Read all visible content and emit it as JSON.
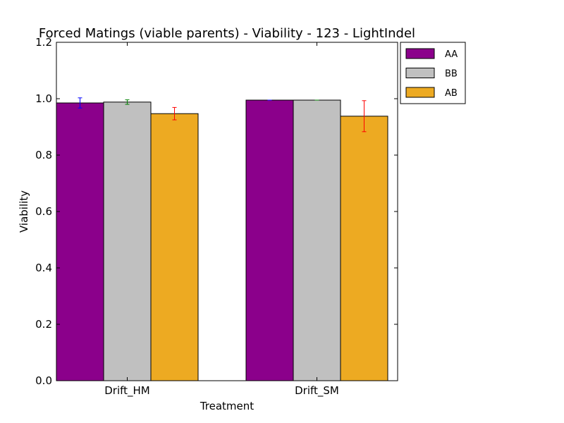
{
  "chart_data": {
    "type": "bar",
    "title": "Forced Matings (viable parents) - Viability - 123 - LightIndel",
    "xlabel": "Treatment",
    "ylabel": "Viability",
    "ylim": [
      0,
      1.2
    ],
    "yticks": [
      "0.0",
      "0.2",
      "0.4",
      "0.6",
      "0.8",
      "1.0",
      "1.2"
    ],
    "categories": [
      "Drift_HM",
      "Drift_SM"
    ],
    "series": [
      {
        "name": "AA",
        "color": "#8b008b",
        "error_color": "#0000ff",
        "values": [
          0.985,
          0.995
        ],
        "errors": [
          0.018,
          0.0
        ]
      },
      {
        "name": "BB",
        "color": "#c0c0c0",
        "error_color": "#008000",
        "values": [
          0.988,
          0.995
        ],
        "errors": [
          0.008,
          0.0
        ]
      },
      {
        "name": "AB",
        "color": "#edaa22",
        "error_color": "#ff0000",
        "values": [
          0.947,
          0.938
        ],
        "errors": [
          0.022,
          0.055
        ]
      }
    ],
    "legend_position": "outside-top-right",
    "grid": false
  }
}
